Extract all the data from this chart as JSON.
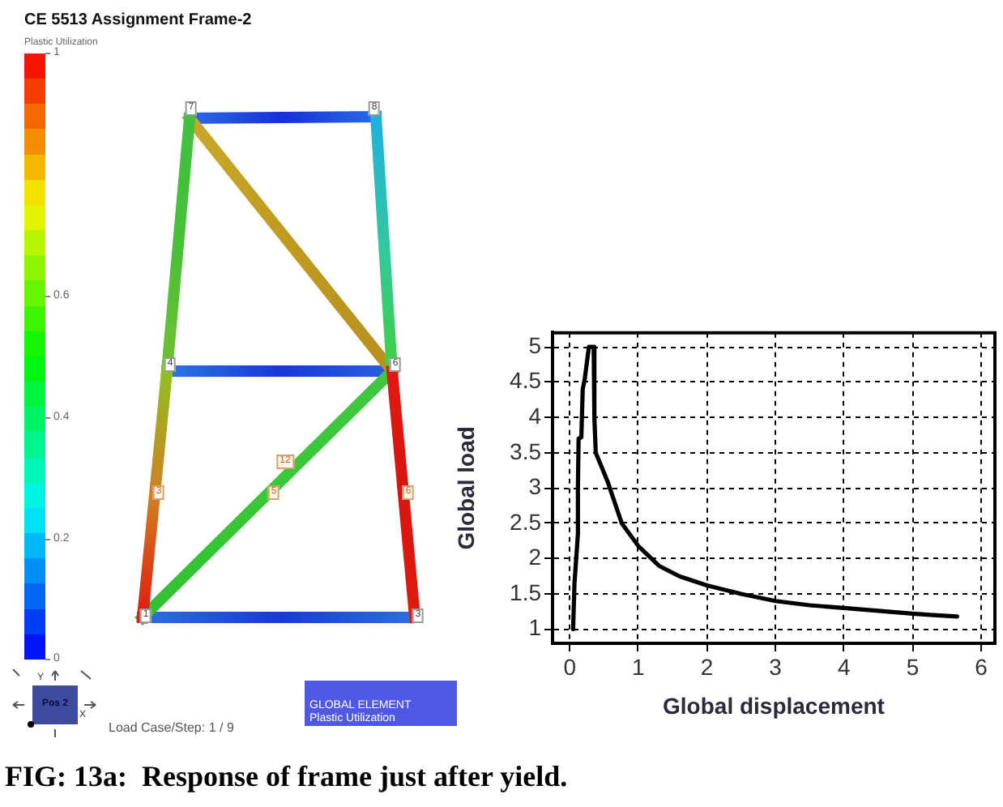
{
  "chart_data": [
    {
      "type": "other",
      "title": "CE 5513 Assignment Frame-2",
      "annotations": [
        "Plastic Utilization",
        "1",
        "0.6",
        "0.4",
        "0.2",
        "0",
        "Pos 2",
        "Y",
        "X",
        "Load Case/Step: 1 / 9",
        "GLOBAL ELEMENT",
        "Plastic Utilization",
        "7",
        "8",
        "4",
        "6",
        "1",
        "3",
        "3",
        "12",
        "5",
        "6"
      ]
    },
    {
      "type": "line",
      "xlabel": "Global displacement",
      "ylabel": "Global load",
      "x": [
        0.05,
        0.07,
        0.12,
        0.12,
        0.13,
        0.17,
        0.19,
        0.22,
        0.28,
        0.35,
        0.36,
        0.38,
        0.55,
        0.76,
        1.0,
        1.3,
        1.6,
        2.0,
        2.5,
        3.0,
        3.5,
        4.0,
        4.5,
        5.0,
        5.3,
        5.65
      ],
      "values": [
        1.0,
        1.65,
        2.35,
        3.0,
        3.7,
        3.72,
        4.4,
        4.55,
        5.0,
        5.0,
        4.0,
        3.5,
        3.1,
        2.5,
        2.18,
        1.9,
        1.75,
        1.62,
        1.5,
        1.4,
        1.34,
        1.3,
        1.26,
        1.22,
        1.2,
        1.18
      ],
      "color": "#000000",
      "xlim": [
        -0.25,
        6.2
      ],
      "ylim": [
        0.8,
        5.2
      ],
      "xticks": [
        0,
        1,
        2,
        3,
        4,
        5,
        6
      ],
      "yticks": [
        1,
        1.5,
        2,
        2.5,
        3,
        3.5,
        4,
        4.5,
        5
      ],
      "grid": true,
      "annotations": [
        "FIG: 13a:  Response of frame just after yield."
      ]
    }
  ]
}
